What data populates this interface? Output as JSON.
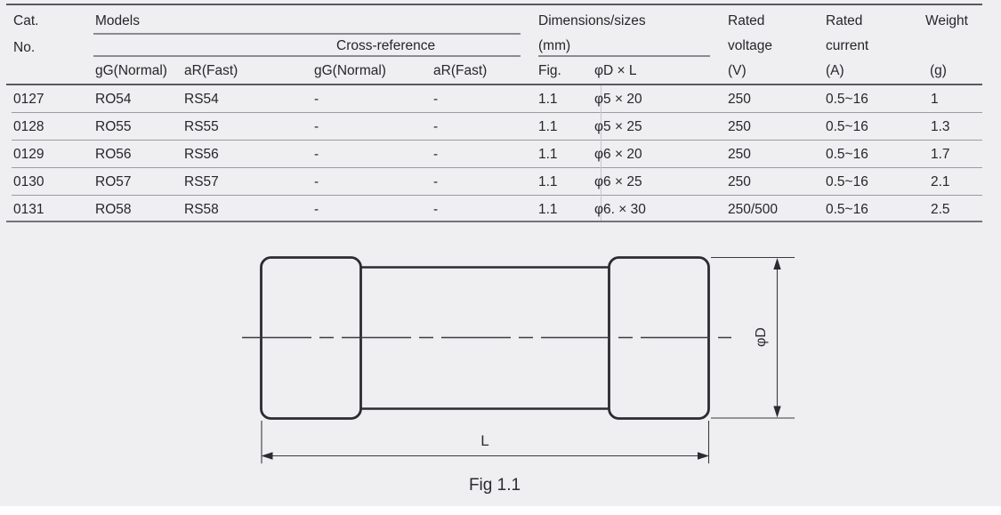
{
  "table": {
    "header": {
      "cat_line1": "Cat.",
      "cat_line2": "No.",
      "models": "Models",
      "cross_reference": "Cross-reference",
      "dimensions_line1": "Dimensions/sizes",
      "dimensions_line2": "(mm)",
      "rated_voltage_line1": "Rated",
      "rated_voltage_line2": "voltage",
      "rated_voltage_unit": "(V)",
      "rated_current_line1": "Rated",
      "rated_current_line2": "current",
      "rated_current_unit": "(A)",
      "weight_line1": "Weight",
      "weight_unit": "(g)",
      "sub": {
        "models_gg": "gG(Normal)",
        "models_ar": "aR(Fast)",
        "cross_gg": "gG(Normal)",
        "cross_ar": "aR(Fast)",
        "fig": "Fig.",
        "dxl": "φD × L"
      }
    },
    "rows": [
      {
        "cat": "0127",
        "gg": "RO54",
        "ar": "RS54",
        "cgg": "-",
        "car": "-",
        "fig": "1.1",
        "dxl": "φ5 × 20",
        "v": "250",
        "a": "0.5~16",
        "g": "1"
      },
      {
        "cat": "0128",
        "gg": "RO55",
        "ar": "RS55",
        "cgg": "-",
        "car": "-",
        "fig": "1.1",
        "dxl": "φ5 × 25",
        "v": "250",
        "a": "0.5~16",
        "g": "1.3"
      },
      {
        "cat": "0129",
        "gg": "RO56",
        "ar": "RS56",
        "cgg": "-",
        "car": "-",
        "fig": "1.1",
        "dxl": "φ6 × 20",
        "v": "250",
        "a": "0.5~16",
        "g": "1.7"
      },
      {
        "cat": "0130",
        "gg": "RO57",
        "ar": "RS57",
        "cgg": "-",
        "car": "-",
        "fig": "1.1",
        "dxl": "φ6 × 25",
        "v": "250",
        "a": "0.5~16",
        "g": "2.1"
      },
      {
        "cat": "0131",
        "gg": "RO58",
        "ar": "RS58",
        "cgg": "-",
        "car": "-",
        "fig": "1.1",
        "dxl": "φ6. × 30",
        "v": "250/500",
        "a": "0.5~16",
        "g": "2.5"
      }
    ]
  },
  "figure": {
    "length_label": "L",
    "diameter_label": "φD",
    "caption": "Fig 1.1"
  },
  "colors": {
    "background": "#efeff1",
    "table_line_dark": "#595960",
    "table_line_light": "#9b9ba2",
    "text": "#26262b",
    "drawing_stroke": "#2b2b30"
  }
}
